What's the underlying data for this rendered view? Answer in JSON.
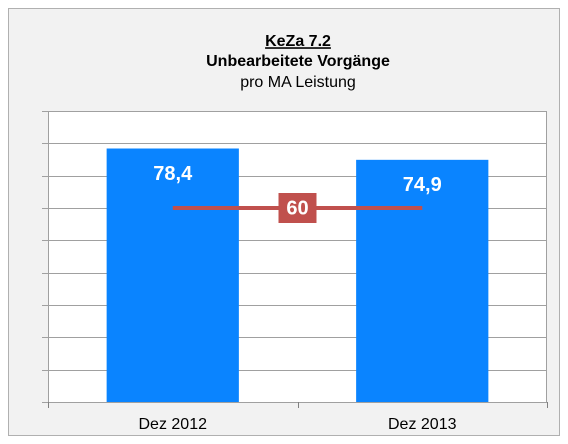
{
  "chart_data": {
    "type": "bar",
    "title": [
      "KeZa 7.2",
      "Unbearbeitete Vorgänge"
    ],
    "subtitle": "pro MA Leistung",
    "categories": [
      "Dez 2012",
      "Dez 2013"
    ],
    "values": [
      78.4,
      74.9
    ],
    "value_labels": [
      "78,4",
      "74,9"
    ],
    "color": "#0a84ff",
    "reference_line": {
      "value": 60,
      "color": "#c0504d"
    },
    "ylim": [
      0,
      90
    ],
    "yticks": [
      0,
      10,
      20,
      30,
      40,
      50,
      60,
      70,
      80,
      90
    ],
    "grid": true
  }
}
